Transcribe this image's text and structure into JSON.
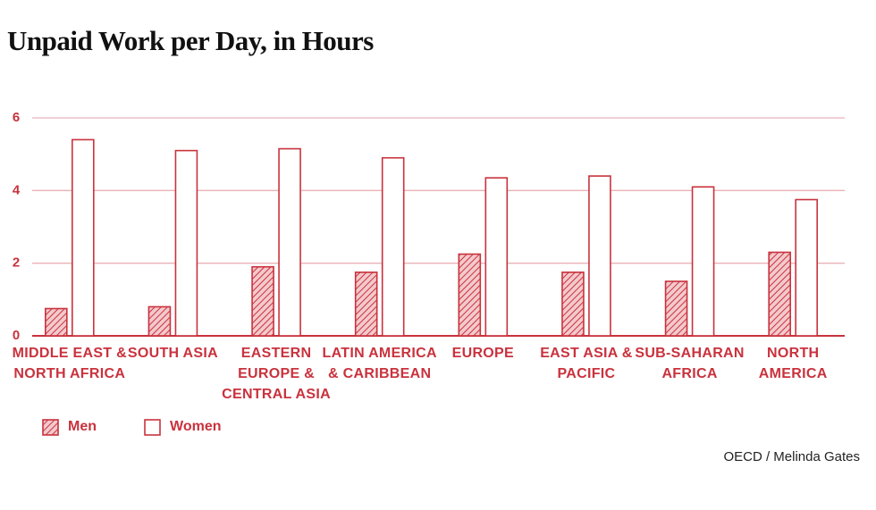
{
  "chart_data": {
    "type": "bar",
    "title": "Unpaid Work per Day, in Hours",
    "categories": [
      "MIDDLE EAST & NORTH AFRICA",
      "SOUTH ASIA",
      "EASTERN EUROPE & CENTRAL ASIA",
      "LATIN AMERICA & CARIBBEAN",
      "EUROPE",
      "EAST ASIA & PACIFIC",
      "SUB-SAHARAN AFRICA",
      "NORTH AMERICA"
    ],
    "series": [
      {
        "name": "Men",
        "color": "#c9323d",
        "values": [
          0.75,
          0.8,
          1.9,
          1.75,
          2.25,
          1.75,
          1.5,
          2.3
        ]
      },
      {
        "name": "Women",
        "color": "#c9323d",
        "values": [
          5.4,
          5.1,
          5.15,
          4.9,
          4.35,
          4.4,
          4.1,
          3.75
        ]
      }
    ],
    "ylim": [
      0,
      6
    ],
    "yticks": [
      0,
      2,
      4,
      6
    ],
    "grid": true,
    "source": "OECD / Melinda Gates"
  }
}
